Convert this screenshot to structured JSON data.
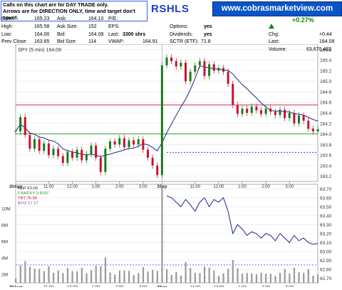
{
  "notice": {
    "line1": "Calls on this chart are for DAY TRADE only.",
    "line2": "Arrows are for DIRECTION ONLY, time and target don't count."
  },
  "ticker_title": "RSHLS",
  "site_banner": "www.cobrasmarketview.com",
  "quote": {
    "open_label": "Open:",
    "open": "165.23",
    "high_label": "High:",
    "high": "165.58",
    "low_label": "Low:",
    "low": "164.00",
    "prev_close_label": "Prev Close:",
    "prev_close": "163.65",
    "ask_label": "Ask:",
    "ask": "164.10",
    "ask_size_label": "Ask Size:",
    "ask_size": "152",
    "bid_label": "Bid:",
    "bid": "164.09",
    "bid_size_label": "Bid Size:",
    "bid_size": "114",
    "pe_label": "P/E:",
    "pe": "",
    "eps_label": "EPS:",
    "eps": "",
    "last_label": "Last:",
    "last": "3300 shrs",
    "vwap_label": "VWAP:",
    "vwap": "164.91",
    "options_label": "Options:",
    "options": "yes",
    "dividends_label": "Dividends:",
    "dividends": "yes",
    "sctr_label": "SCTR (ETF):",
    "sctr": "71.8",
    "pct_change": "+0.27%",
    "chg_label": "Chg:",
    "chg": "+0.44",
    "last2_label": "Last:",
    "last2": "164.09",
    "volume_label": "Volume:",
    "volume": "63,670,432"
  },
  "colors": {
    "up": "#1a7a1a",
    "down": "#c8102e",
    "ma_blue": "#1c2a8a",
    "ma_pink": "#e8a0c8",
    "res_red": "#c8102e",
    "sup_green": "#1a9a1a",
    "dash_blue": "#3344cc",
    "lavender": "#a898e0",
    "gray_bar": "#9a9a9a"
  },
  "chart_data": [
    {
      "type": "line",
      "title": "SPY (5 min) 164.09",
      "x_ticks": [
        "30Aug",
        "11:00",
        "12:00",
        "1:00",
        "2:00",
        "3:00",
        "3Sep",
        "11:00",
        "12:00",
        "1:00",
        "2:00",
        "3:00"
      ],
      "y_ticks": [
        163.2,
        163.4,
        163.6,
        163.8,
        164.0,
        164.2,
        164.4,
        164.6,
        164.8,
        165.0,
        165.2,
        165.4,
        165.6
      ],
      "ylim": [
        163.1,
        165.7
      ],
      "series": [
        {
          "name": "SPY (5 min) 164.09",
          "x": [
            0,
            2,
            4,
            6,
            8,
            10,
            12,
            14,
            16,
            18,
            20,
            22,
            24,
            26,
            28,
            30,
            32,
            34,
            36,
            38,
            40,
            42,
            44,
            46,
            48,
            50,
            52,
            54,
            56,
            58,
            60,
            62,
            64,
            66,
            68,
            70,
            72,
            74,
            76,
            78,
            80,
            82,
            84,
            86,
            88,
            90,
            92,
            94,
            96,
            98,
            100,
            102,
            104,
            106,
            108,
            110,
            112,
            114,
            116,
            118,
            120,
            122,
            124,
            126,
            128
          ],
          "y": [
            164.05,
            164.32,
            163.98,
            163.72,
            163.9,
            163.68,
            163.82,
            163.6,
            163.72,
            163.58,
            163.45,
            163.66,
            163.55,
            163.7,
            163.5,
            163.62,
            163.78,
            163.55,
            163.28,
            163.72,
            163.86,
            163.8,
            163.92,
            163.75,
            163.88,
            163.8,
            163.9,
            163.7,
            163.55,
            163.4,
            163.22,
            165.3,
            165.45,
            165.38,
            165.28,
            165.35,
            165.0,
            165.18,
            165.3,
            165.38,
            165.1,
            165.32,
            165.2,
            165.25,
            165.18,
            164.95,
            164.55,
            164.38,
            164.48,
            164.4,
            164.52,
            164.45,
            164.38,
            164.48,
            164.42,
            164.36,
            164.46,
            164.3,
            164.4,
            164.2,
            164.35,
            164.25,
            164.1,
            164.05,
            164.09
          ]
        }
      ],
      "lines": [
        {
          "name": "resistance",
          "value": 164.55
        },
        {
          "name": "support",
          "value": 164.0
        },
        {
          "name": "prev-close",
          "value": 163.65
        }
      ]
    },
    {
      "type": "line",
      "title": "",
      "legend": [
        "RSP 63.09",
        "FXA/FXY 0.8197",
        "TBT 76.56",
        "$VIX 17.17"
      ],
      "y_ticks_right": [
        62.7,
        62.8,
        62.9,
        63.0,
        63.1,
        63.2,
        63.3,
        63.4,
        63.5,
        63.6,
        63.7
      ],
      "y_ticks_left": [
        "2M",
        "4M",
        "6M",
        "8M",
        "10M"
      ],
      "ylim": [
        62.65,
        63.75
      ],
      "x_ticks": [
        "30Aug",
        "11:00",
        "12:00",
        "1:00",
        "2:00",
        "3:00",
        "3Sep",
        "11:00",
        "12:00",
        "1:00",
        "2:00",
        "3:00"
      ],
      "series": [
        {
          "name": "RSP",
          "x": [
            64,
            66,
            68,
            70,
            72,
            74,
            76,
            78,
            80,
            82,
            84,
            86,
            88,
            90,
            92,
            94,
            96,
            98,
            100,
            102,
            104,
            106,
            108,
            110,
            112,
            114,
            116,
            118,
            120,
            122,
            124,
            126,
            128
          ],
          "y": [
            63.62,
            63.6,
            63.55,
            63.5,
            63.58,
            63.52,
            63.45,
            63.55,
            63.6,
            63.5,
            63.58,
            63.55,
            63.6,
            63.45,
            63.2,
            63.3,
            63.25,
            63.18,
            63.22,
            63.2,
            63.15,
            63.2,
            63.18,
            63.12,
            63.2,
            63.15,
            63.1,
            63.18,
            63.12,
            63.15,
            63.1,
            63.08,
            63.09
          ]
        }
      ]
    }
  ]
}
